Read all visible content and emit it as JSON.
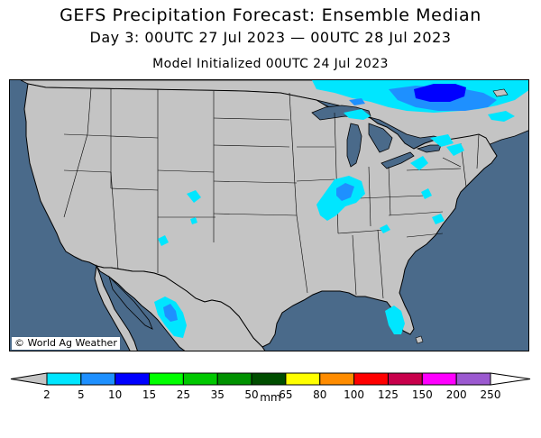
{
  "header": {
    "title": "GEFS Precipitation Forecast: Ensemble Median",
    "subtitle": "Day 3: 00UTC 27 Jul 2023 — 00UTC 28 Jul 2023",
    "init": "Model Initialized 00UTC 24 Jul 2023"
  },
  "map": {
    "credit": "© World Ag Weather",
    "colors": {
      "ocean": "#4a6a8a",
      "land": "#c4c4c4",
      "borders": "#000000"
    }
  },
  "legend": {
    "unit": "mm",
    "ticks": [
      "2",
      "5",
      "10",
      "15",
      "25",
      "35",
      "50",
      "65",
      "80",
      "100",
      "125",
      "150",
      "200",
      "250"
    ],
    "below_color": "#c4c4c4",
    "colors": [
      "#00e6ff",
      "#1e90ff",
      "#0000ff",
      "#00ff00",
      "#00c800",
      "#009100",
      "#004d00",
      "#ffff00",
      "#ff8c00",
      "#ff0000",
      "#c8004b",
      "#ff00ff",
      "#9b59d0"
    ],
    "above_color": "#ffffff"
  }
}
